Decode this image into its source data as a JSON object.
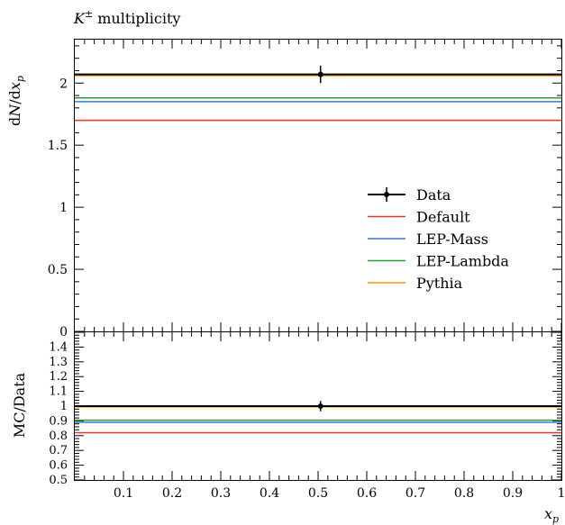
{
  "chart_data": [
    {
      "type": "line",
      "panel": "main",
      "title": "K± multiplicity",
      "title_base": "K",
      "title_sup": "±",
      "title_rest": " multiplicity",
      "ylabel": "dN/dx_p",
      "ylabel_parts": [
        "d",
        "N",
        "/d",
        "x",
        "p"
      ],
      "xlim": [
        0.0,
        1.0
      ],
      "ylim": [
        0.0,
        2.35
      ],
      "y_ticks": [
        0,
        0.5,
        1,
        1.5,
        2
      ],
      "y_tick_labels": [
        "0",
        "0.5",
        "1",
        "1.5",
        "2"
      ],
      "legend_position": "right",
      "data_point": {
        "name": "Data",
        "x": 0.505,
        "y": 2.07,
        "yerr": 0.07,
        "color": "#000000"
      },
      "series": [
        {
          "name": "Data",
          "y": 2.07,
          "color": "#000000"
        },
        {
          "name": "Default",
          "y": 1.7,
          "color": "#e0392b"
        },
        {
          "name": "LEP-Mass",
          "y": 1.85,
          "color": "#3f78c9"
        },
        {
          "name": "LEP-Lambda",
          "y": 1.88,
          "color": "#2e9c3a"
        },
        {
          "name": "Pythia",
          "y": 2.06,
          "color": "#f59a0c"
        }
      ]
    },
    {
      "type": "line",
      "panel": "ratio",
      "ylabel": "MC/Data",
      "xlabel": "x_p",
      "xlabel_parts": [
        "x",
        "p"
      ],
      "xlim": [
        0.0,
        1.0
      ],
      "ylim": [
        0.5,
        1.5
      ],
      "x_ticks": [
        0.1,
        0.2,
        0.3,
        0.4,
        0.5,
        0.6,
        0.7,
        0.8,
        0.9,
        1.0
      ],
      "x_tick_labels": [
        "0.1",
        "0.2",
        "0.3",
        "0.4",
        "0.5",
        "0.6",
        "0.7",
        "0.8",
        "0.9",
        "1"
      ],
      "y_ticks": [
        0.5,
        0.6,
        0.7,
        0.8,
        0.9,
        1.0,
        1.1,
        1.2,
        1.3,
        1.4
      ],
      "y_tick_labels": [
        "0.5",
        "0.6",
        "0.7",
        "0.8",
        "0.9",
        "1",
        "1.1",
        "1.2",
        "1.3",
        "1.4"
      ],
      "data_point": {
        "x": 0.505,
        "y": 1.0,
        "yerr": 0.035
      },
      "series": [
        {
          "name": "Data",
          "y": 1.0,
          "color": "#000000"
        },
        {
          "name": "Default",
          "y": 0.82,
          "color": "#e0392b"
        },
        {
          "name": "LEP-Mass",
          "y": 0.89,
          "color": "#3f78c9"
        },
        {
          "name": "LEP-Lambda",
          "y": 0.905,
          "color": "#2e9c3a"
        },
        {
          "name": "Pythia",
          "y": 0.995,
          "color": "#f59a0c"
        }
      ]
    }
  ]
}
